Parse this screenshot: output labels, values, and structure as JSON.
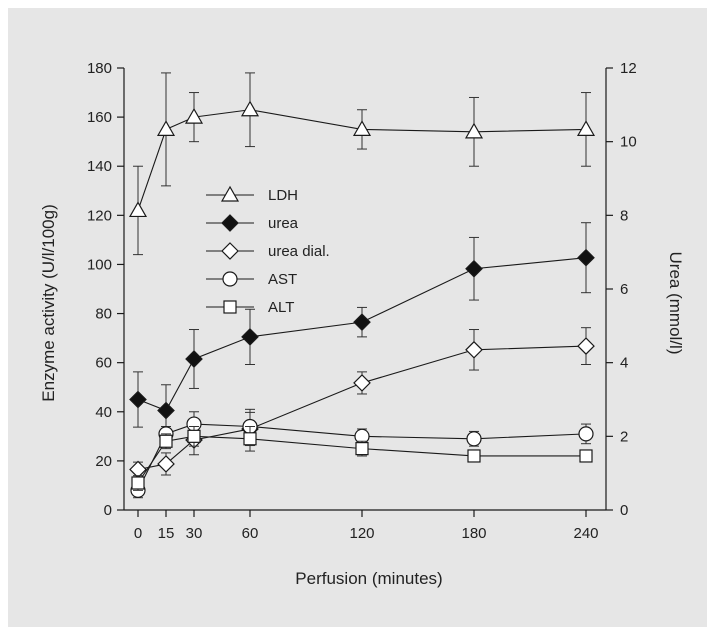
{
  "chart_data": {
    "type": "line",
    "xlabel": "Perfusion (minutes)",
    "ylabel_left": "Enzyme activity (U/l/100g)",
    "ylabel_right": "Urea (mmol/l)",
    "xlim": [
      0,
      240
    ],
    "ylim_left": [
      0,
      180
    ],
    "ylim_right": [
      0,
      12
    ],
    "x_ticks": [
      0,
      15,
      30,
      60,
      120,
      180,
      240
    ],
    "y_ticks_left": [
      0,
      20,
      40,
      60,
      80,
      100,
      120,
      140,
      160,
      180
    ],
    "y_ticks_right": [
      0,
      2,
      4,
      6,
      8,
      10,
      12
    ],
    "grid": false,
    "legend_position": "upper-left",
    "series": [
      {
        "name": "LDH",
        "axis": "left",
        "marker": "triangle-open",
        "x": [
          0,
          15,
          30,
          60,
          120,
          180,
          240
        ],
        "y": [
          122,
          155,
          160,
          163,
          155,
          154,
          155
        ],
        "err": [
          18,
          23,
          10,
          15,
          8,
          14,
          15
        ]
      },
      {
        "name": "urea",
        "axis": "right",
        "marker": "diamond-filled",
        "x": [
          0,
          15,
          30,
          60,
          120,
          180,
          240
        ],
        "y": [
          3.0,
          2.7,
          4.1,
          4.7,
          5.1,
          6.55,
          6.85
        ],
        "err": [
          0.75,
          0.7,
          0.8,
          0.75,
          0.4,
          0.85,
          0.95
        ]
      },
      {
        "name": "urea dial.",
        "axis": "right",
        "marker": "diamond-open",
        "x": [
          0,
          15,
          30,
          60,
          120,
          180,
          240
        ],
        "y": [
          1.1,
          1.25,
          1.9,
          2.2,
          3.45,
          4.35,
          4.45
        ],
        "err": [
          0.2,
          0.3,
          0.4,
          0.45,
          0.3,
          0.55,
          0.5
        ]
      },
      {
        "name": "AST",
        "axis": "left",
        "marker": "circle-open",
        "x": [
          0,
          15,
          30,
          60,
          120,
          180,
          240
        ],
        "y": [
          8,
          31,
          35,
          34,
          30,
          29,
          31
        ],
        "err": [
          3,
          3,
          5,
          7,
          3,
          3,
          4
        ]
      },
      {
        "name": "ALT",
        "axis": "left",
        "marker": "square-open",
        "x": [
          0,
          15,
          30,
          60,
          120,
          180,
          240
        ],
        "y": [
          11,
          28,
          30,
          29,
          25,
          22,
          22
        ],
        "err": [
          3,
          3,
          4,
          5,
          3,
          2,
          2
        ]
      }
    ]
  }
}
